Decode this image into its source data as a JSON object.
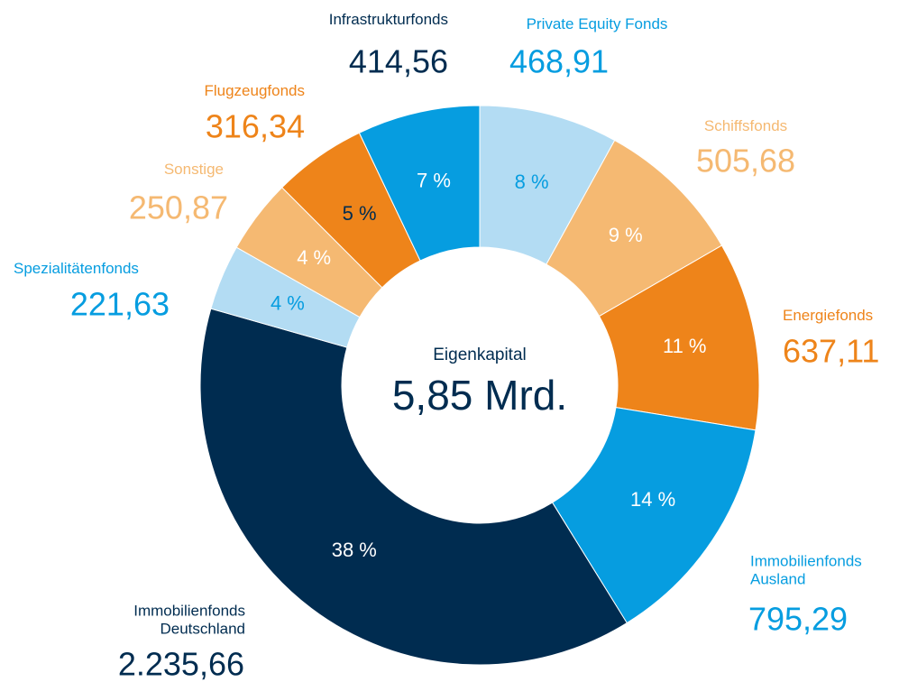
{
  "chart_data": {
    "type": "donut",
    "center_label": "Eigenkapital",
    "center_value": "5,85 Mrd.",
    "categories": [
      "Private Equity Fonds",
      "Schiffsfonds",
      "Energiefonds",
      "Immobilienfonds Ausland",
      "Immobilienfonds Deutschland",
      "Spezialitätenfonds",
      "Sonstige",
      "Flugzeugfonds",
      "Infrastrukturfonds"
    ],
    "values": [
      468.91,
      505.68,
      637.11,
      795.29,
      2235.66,
      221.63,
      250.87,
      316.34,
      414.56
    ],
    "value_labels": [
      "468,91",
      "505,68",
      "637,11",
      "795,29",
      "2.235,66",
      "221,63",
      "250,87",
      "316,34",
      "414,56"
    ],
    "shares": [
      8,
      9,
      11,
      14,
      38,
      4,
      4,
      5,
      7
    ],
    "share_labels": [
      "8 %",
      "9 %",
      "11 %",
      "14 %",
      "38 %",
      "4 %",
      "4 %",
      "5 %",
      "7 %"
    ],
    "colors": [
      "#b3dcf3",
      "#f5b972",
      "#ee841a",
      "#069de0",
      "#002c50",
      "#b3dcf3",
      "#f5b972",
      "#ee841a",
      "#069de0"
    ],
    "label_colors": [
      "#069de0",
      "#f5b972",
      "#ee841a",
      "#069de0",
      "#002c50",
      "#069de0",
      "#f5b972",
      "#ee841a",
      "#002c50"
    ],
    "share_label_colors": [
      "#069de0",
      "#ffffff",
      "#ffffff",
      "#ffffff",
      "#ffffff",
      "#069de0",
      "#ffffff",
      "#002c50",
      "#ffffff"
    ]
  }
}
